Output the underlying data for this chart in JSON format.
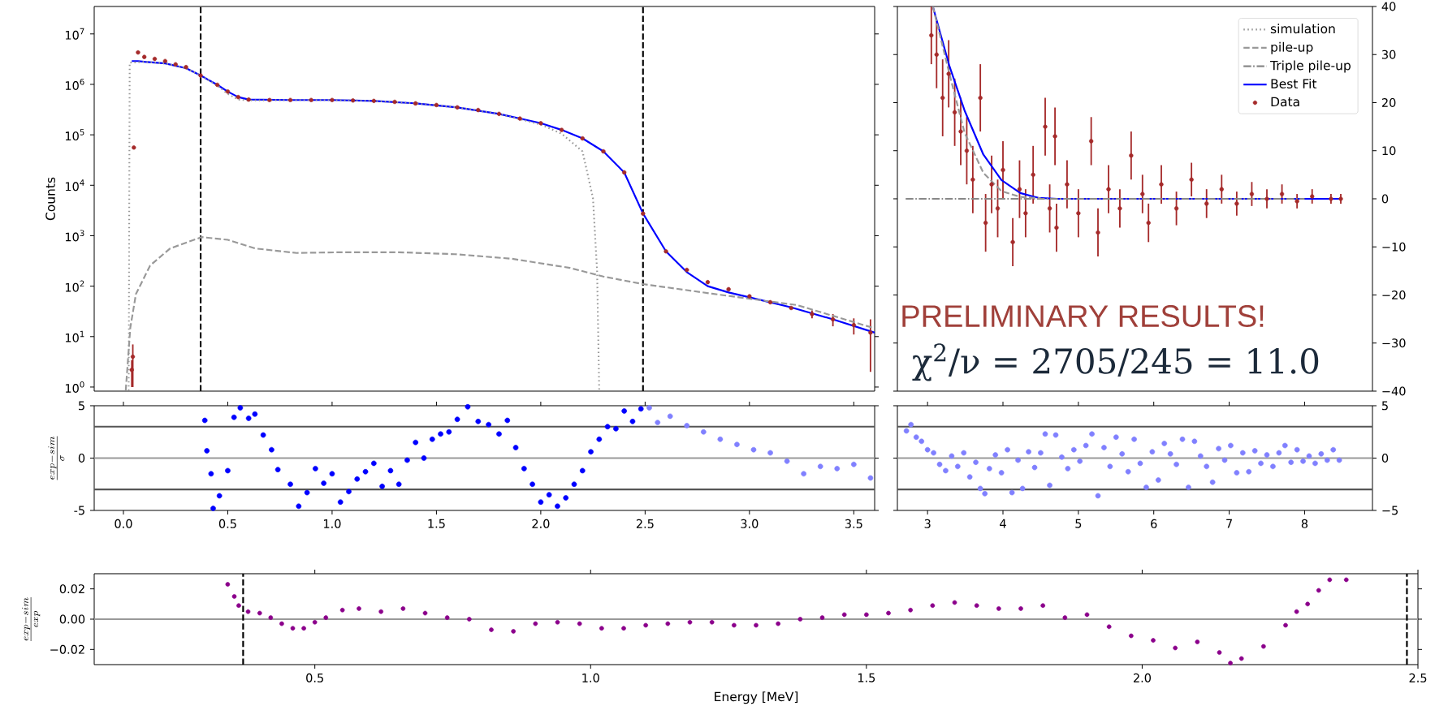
{
  "chart_data": [
    {
      "type": "line",
      "ylabel": "Counts",
      "xlim": [
        -0.14,
        3.6
      ],
      "ylim": [
        0.83,
        35000000
      ],
      "log": "y",
      "tick_labels": "y",
      "yticks": [
        {
          "value": 1,
          "label": "10$^{0}$"
        },
        {
          "value": 10,
          "label": "10$^{1}$"
        },
        {
          "value": 100,
          "label": "10$^{2}$"
        },
        {
          "value": 1000,
          "label": "10$^{3}$"
        },
        {
          "value": 10000,
          "label": "10$^{4}$"
        },
        {
          "value": 100000,
          "label": "10$^{5}$"
        },
        {
          "value": 1000000,
          "label": "10$^{6}$"
        },
        {
          "value": 10000000,
          "label": "10$^{7}$"
        }
      ],
      "ref_lines": [
        {
          "axis": "x",
          "value": 0.37,
          "color": "#000000",
          "line_style": "dashed"
        },
        {
          "axis": "x",
          "value": 2.49,
          "color": "#000000",
          "line_style": "dashed"
        }
      ],
      "series": [
        {
          "name": "simulation",
          "type": "line",
          "color": "#999999",
          "line_style": "dotted",
          "x": [
            0.025,
            0.03,
            0.1,
            0.2,
            0.3,
            0.37,
            0.45,
            0.5,
            0.55,
            0.6,
            0.8,
            1.0,
            1.2,
            1.4,
            1.6,
            1.8,
            2.0,
            2.1,
            2.2,
            2.25,
            2.27,
            2.28
          ],
          "values": [
            0.85,
            2700000,
            2800000,
            2600000,
            2100000,
            1500000,
            950000,
            650000,
            500000,
            480000,
            490000,
            490000,
            470000,
            420000,
            350000,
            260000,
            160000,
            105000,
            47000,
            5600,
            200,
            0.85
          ]
        },
        {
          "type": "line",
          "color": "#999999",
          "line_style": "dashed",
          "x": [
            0.011,
            0.033,
            0.06,
            0.128,
            0.224,
            0.375,
            0.5,
            0.63,
            0.83,
            1.04,
            1.32,
            1.59,
            1.86,
            2.14,
            2.3,
            2.49,
            2.82,
            3.23,
            3.59
          ],
          "values": [
            0.85,
            15,
            70,
            257,
            560,
            940,
            830,
            560,
            455,
            470,
            470,
            430,
            350,
            230,
            155,
            110,
            71,
            42,
            15
          ]
        },
        {
          "type": "line",
          "color": "#0000ff",
          "line_style": "solid",
          "x": [
            0.04,
            0.07,
            0.1,
            0.2,
            0.3,
            0.37,
            0.45,
            0.5,
            0.55,
            0.6,
            0.8,
            1.0,
            1.2,
            1.4,
            1.6,
            1.8,
            2.0,
            2.1,
            2.2,
            2.3,
            2.4,
            2.49,
            2.6,
            2.7,
            2.8,
            2.9,
            3.0,
            3.2,
            3.4,
            3.6
          ],
          "values": [
            2900000,
            2900000,
            2800000,
            2600000,
            2100000,
            1500000,
            980000,
            720000,
            560000,
            500000,
            490000,
            490000,
            470000,
            420000,
            350000,
            260000,
            170000,
            125000,
            85000,
            47000,
            18000,
            2750,
            490,
            190,
            100,
            75,
            60,
            38,
            22,
            12
          ]
        },
        {
          "type": "scatter",
          "color": "#a52a2a",
          "marker": "circle",
          "x": [
            0.04,
            0.045,
            0.05,
            0.07,
            0.1,
            0.15,
            0.2,
            0.25,
            0.3,
            0.37,
            0.45,
            0.5,
            0.55,
            0.6,
            0.7,
            0.8,
            0.9,
            1.0,
            1.1,
            1.2,
            1.3,
            1.4,
            1.5,
            1.6,
            1.7,
            1.8,
            1.9,
            2.0,
            2.1,
            2.2,
            2.3,
            2.4,
            2.49,
            2.6,
            2.7,
            2.8,
            2.9,
            3.0,
            3.1,
            3.2,
            3.3,
            3.4,
            3.5,
            3.58
          ],
          "values": [
            2.2,
            4,
            56000,
            4300000,
            3500000,
            3200000,
            2900000,
            2500000,
            2200000,
            1500000,
            980000,
            720000,
            560000,
            500000,
            490000,
            490000,
            490000,
            490000,
            480000,
            470000,
            450000,
            420000,
            390000,
            350000,
            310000,
            260000,
            210000,
            170000,
            125000,
            85000,
            47000,
            18000,
            2750,
            490,
            210,
            120,
            87,
            63,
            48,
            37,
            28,
            22,
            17,
            12
          ],
          "errors": [
            1.2,
            3,
            null,
            null,
            null,
            null,
            null,
            null,
            null,
            null,
            null,
            null,
            null,
            null,
            null,
            null,
            null,
            null,
            null,
            null,
            null,
            null,
            null,
            null,
            null,
            null,
            null,
            null,
            null,
            null,
            null,
            null,
            null,
            null,
            null,
            null,
            null,
            null,
            null,
            null,
            5,
            6,
            6,
            10
          ]
        }
      ]
    },
    {
      "type": "line",
      "xlim": [
        2.6,
        8.9
      ],
      "ylim": [
        -40,
        40
      ],
      "tick_labels": "y",
      "legend": "top right",
      "yticks": [
        {
          "value": -40,
          "label": "−40"
        },
        {
          "value": -30,
          "label": "−30"
        },
        {
          "value": -20,
          "label": "−20"
        },
        {
          "value": -10,
          "label": "−10"
        },
        0,
        10,
        20,
        30,
        40
      ],
      "annotations": [
        "PRELIMINARY RESULTS!",
        "χ$^{2}$/ν = 2705/245  = 11.0"
      ],
      "series": [
        {
          "name": "pile-up",
          "type": "line",
          "color": "#999999",
          "line_style": "dashed",
          "x": [
            3.07,
            3.29,
            3.49,
            3.74,
            3.98,
            4.23,
            4.5
          ],
          "values": [
            40,
            26,
            13.8,
            5.4,
            1.6,
            0.4,
            0.1
          ]
        },
        {
          "name": "Triple pile-up",
          "type": "line",
          "color": "#888888",
          "line_style": "dashdot",
          "x": [
            2.71,
            8.0
          ],
          "values": [
            0,
            0
          ]
        },
        {
          "name": "Best Fit",
          "type": "line",
          "color": "#0000ff",
          "line_style": "solid",
          "x": [
            3.07,
            3.29,
            3.49,
            3.74,
            3.98,
            4.23,
            4.47,
            4.72,
            8.48
          ],
          "values": [
            40,
            27.6,
            18.4,
            9.2,
            3.9,
            1.2,
            0.2,
            0,
            0
          ]
        },
        {
          "name": "Data",
          "type": "scatter",
          "color": "#a52a2a",
          "marker": "circle",
          "x": [
            3.05,
            3.12,
            3.2,
            3.28,
            3.36,
            3.44,
            3.52,
            3.6,
            3.7,
            3.77,
            3.85,
            3.93,
            4.0,
            4.13,
            4.22,
            4.3,
            4.4,
            4.56,
            4.62,
            4.69,
            4.71,
            4.85,
            5.0,
            5.17,
            5.26,
            5.4,
            5.55,
            5.7,
            5.85,
            5.93,
            6.1,
            6.3,
            6.5,
            6.7,
            6.9,
            7.1,
            7.3,
            7.5,
            7.7,
            7.9,
            8.1,
            8.35,
            8.48
          ],
          "values": [
            34,
            30,
            21,
            26,
            18,
            14,
            10,
            4,
            21,
            -5,
            3,
            -2,
            6,
            -9,
            2,
            -3,
            5,
            15,
            -2,
            13,
            -6,
            3,
            -3,
            12,
            -7,
            2,
            -2,
            9,
            1,
            -5,
            3,
            -2,
            4,
            -1,
            2,
            -1,
            1,
            0,
            1,
            -0.5,
            0.5,
            0,
            0
          ],
          "errors": [
            6,
            7,
            8,
            7,
            7,
            7,
            7,
            7,
            7,
            6,
            6,
            6,
            6,
            5,
            6,
            5,
            6,
            6,
            5,
            6,
            5,
            5,
            5,
            5,
            5,
            5,
            4,
            5,
            4,
            4,
            4,
            3.5,
            3.5,
            3,
            3,
            2.5,
            2.5,
            2,
            2,
            1.5,
            1.5,
            1,
            1
          ]
        }
      ]
    },
    {
      "type": "scatter",
      "ylabel": "\\frac{exp-sim}{\\sigma}",
      "xlim": [
        -0.14,
        3.6
      ],
      "ylim": [
        -5,
        5
      ],
      "yticks": [
        -5,
        0,
        5
      ],
      "xticks": [
        {
          "value": 0,
          "label": "0.0"
        },
        {
          "value": 0.5,
          "label": "0.5"
        },
        {
          "value": 1,
          "label": "1.0"
        },
        {
          "value": 1.5,
          "label": "1.5"
        },
        {
          "value": 2,
          "label": "2.0"
        },
        {
          "value": 2.5,
          "label": "2.5"
        },
        {
          "value": 3,
          "label": "3.0"
        },
        {
          "value": 3.5,
          "label": "3.5"
        }
      ],
      "ref_lines": [
        {
          "axis": "y",
          "value": 3,
          "color": "#555555",
          "line_style": "solid"
        },
        {
          "axis": "y",
          "value": 0,
          "color": "#999999",
          "line_style": "solid"
        },
        {
          "axis": "y",
          "value": -3,
          "color": "#555555",
          "line_style": "solid"
        }
      ],
      "series": [
        {
          "color": "#0000ff",
          "marker": "circle",
          "x": [
            0.39,
            0.4,
            0.42,
            0.43,
            0.46,
            0.5,
            0.53,
            0.56,
            0.6,
            0.63,
            0.67,
            0.71,
            0.74,
            0.8,
            0.84,
            0.88,
            0.92,
            0.96,
            1.0,
            1.04,
            1.08,
            1.12,
            1.16,
            1.2,
            1.24,
            1.28,
            1.32,
            1.36,
            1.4,
            1.44,
            1.48,
            1.52,
            1.56,
            1.6,
            1.65,
            1.7,
            1.75,
            1.8,
            1.84,
            1.88,
            1.92,
            1.96,
            2.0,
            2.04,
            2.08,
            2.12,
            2.16,
            2.2,
            2.24,
            2.28,
            2.32,
            2.36,
            2.4,
            2.44,
            2.48
          ],
          "values": [
            3.6,
            0.7,
            -1.5,
            -4.8,
            -3.6,
            -1.2,
            3.9,
            4.8,
            3.8,
            4.2,
            2.2,
            0.8,
            -1.1,
            -2.5,
            -4.6,
            -3.3,
            -1.0,
            -2.4,
            -1.5,
            -4.2,
            -3.2,
            -2.0,
            -1.3,
            -0.5,
            -2.7,
            -1.2,
            -2.5,
            -0.2,
            1.5,
            0.0,
            1.8,
            2.3,
            2.5,
            3.7,
            4.9,
            3.5,
            3.2,
            2.3,
            3.6,
            1.0,
            -1.0,
            -2.5,
            -4.2,
            -3.5,
            -4.6,
            -3.8,
            -2.5,
            -1.2,
            0.6,
            1.8,
            3.0,
            2.8,
            4.5,
            3.5,
            4.7
          ]
        },
        {
          "color": "#8080ff",
          "marker": "circle",
          "x": [
            2.52,
            2.56,
            2.62,
            2.7,
            2.78,
            2.86,
            2.94,
            3.02,
            3.1,
            3.18,
            3.26,
            3.34,
            3.42,
            3.5,
            3.58
          ],
          "values": [
            4.8,
            3.4,
            4.0,
            3.1,
            2.5,
            1.8,
            1.3,
            0.8,
            0.5,
            -0.3,
            -1.5,
            -0.8,
            -1.0,
            -0.6,
            -1.9
          ]
        }
      ]
    },
    {
      "type": "scatter",
      "xlim": [
        2.6,
        8.9
      ],
      "ylim": [
        -5,
        5
      ],
      "yticks": [
        {
          "value": -5,
          "label": "−5"
        },
        0,
        5
      ],
      "xticks": [
        3,
        4,
        5,
        6,
        7,
        8
      ],
      "ref_lines": [
        {
          "axis": "y",
          "value": 3,
          "color": "#555555",
          "line_style": "solid"
        },
        {
          "axis": "y",
          "value": 0,
          "color": "#999999",
          "line_style": "solid"
        },
        {
          "axis": "y",
          "value": -3,
          "color": "#555555",
          "line_style": "solid"
        }
      ],
      "series": [
        {
          "color": "#8080ff",
          "marker": "circle",
          "x": [
            2.72,
            2.78,
            2.85,
            2.92,
            3.0,
            3.08,
            3.16,
            3.24,
            3.32,
            3.4,
            3.48,
            3.56,
            3.64,
            3.7,
            3.76,
            3.82,
            3.9,
            3.98,
            4.06,
            4.12,
            4.2,
            4.26,
            4.34,
            4.42,
            4.5,
            4.56,
            4.62,
            4.7,
            4.78,
            4.86,
            4.94,
            5.02,
            5.1,
            5.18,
            5.26,
            5.34,
            5.42,
            5.5,
            5.58,
            5.66,
            5.74,
            5.82,
            5.9,
            5.98,
            6.06,
            6.14,
            6.22,
            6.3,
            6.38,
            6.46,
            6.54,
            6.62,
            6.7,
            6.78,
            6.86,
            6.94,
            7.02,
            7.1,
            7.18,
            7.26,
            7.34,
            7.42,
            7.5,
            7.58,
            7.66,
            7.74,
            7.82,
            7.9,
            7.98,
            8.06,
            8.14,
            8.22,
            8.3,
            8.38,
            8.46
          ],
          "values": [
            2.6,
            3.2,
            2.0,
            1.6,
            0.8,
            0.5,
            -0.6,
            -1.2,
            0.2,
            -0.8,
            0.5,
            -1.8,
            -0.4,
            -2.9,
            -3.4,
            -1.0,
            0.3,
            -1.4,
            0.8,
            -3.3,
            -0.2,
            -2.9,
            0.6,
            -0.9,
            0.5,
            2.3,
            -2.6,
            2.2,
            0.1,
            -1.0,
            0.8,
            -0.3,
            1.2,
            2.3,
            -3.6,
            1.0,
            -0.8,
            2.0,
            0.4,
            -1.3,
            1.8,
            -0.5,
            -2.8,
            0.6,
            -2.1,
            1.4,
            0.4,
            -0.6,
            1.8,
            -2.8,
            1.6,
            0.2,
            -0.8,
            -2.3,
            0.9,
            -0.2,
            1.2,
            -1.4,
            0.5,
            -1.3,
            0.7,
            -0.5,
            0.3,
            -0.8,
            0.5,
            1.2,
            -0.4,
            0.8,
            -0.3,
            0.2,
            -0.5,
            0.4,
            -0.2,
            0.8,
            -0.2
          ]
        }
      ]
    },
    {
      "type": "scatter",
      "xlabel": "Energy [MeV]",
      "ylabel": "\\frac{exp-sim}{exp}",
      "xlim": [
        0.1,
        2.5
      ],
      "ylim": [
        -0.03,
        0.03
      ],
      "xticks": [
        {
          "value": 0.5,
          "label": "0.5"
        },
        {
          "value": 1,
          "label": "1.0"
        },
        {
          "value": 1.5,
          "label": "1.5"
        },
        {
          "value": 2,
          "label": "2.0"
        },
        {
          "value": 2.5,
          "label": "2.5"
        }
      ],
      "yticks": [
        {
          "value": -0.02,
          "label": "−0.02"
        },
        {
          "value": 0,
          "label": "0.00"
        },
        {
          "value": 0.02,
          "label": "0.02"
        }
      ],
      "ref_lines": [
        {
          "axis": "y",
          "value": 0,
          "color": "#999999",
          "line_style": "solid"
        },
        {
          "axis": "x",
          "value": 0.37,
          "color": "#000000",
          "line_style": "dashed"
        },
        {
          "axis": "x",
          "value": 2.48,
          "color": "#000000",
          "line_style": "dashed"
        }
      ],
      "series": [
        {
          "color": "#8b008b",
          "marker": "circle",
          "x": [
            0.342,
            0.354,
            0.362,
            0.379,
            0.4,
            0.42,
            0.44,
            0.46,
            0.48,
            0.5,
            0.52,
            0.55,
            0.58,
            0.62,
            0.66,
            0.7,
            0.74,
            0.78,
            0.82,
            0.86,
            0.9,
            0.94,
            0.98,
            1.02,
            1.06,
            1.1,
            1.14,
            1.18,
            1.22,
            1.26,
            1.3,
            1.34,
            1.38,
            1.42,
            1.46,
            1.5,
            1.54,
            1.58,
            1.62,
            1.66,
            1.7,
            1.74,
            1.78,
            1.82,
            1.86,
            1.9,
            1.94,
            1.98,
            2.02,
            2.06,
            2.1,
            2.14,
            2.16,
            2.18,
            2.22,
            2.26,
            2.28,
            2.3,
            2.32,
            2.34,
            2.37
          ],
          "values": [
            0.023,
            0.015,
            0.009,
            0.005,
            0.004,
            0.001,
            -0.003,
            -0.006,
            -0.006,
            -0.002,
            0.001,
            0.006,
            0.007,
            0.005,
            0.007,
            0.004,
            0.001,
            0.0,
            -0.007,
            -0.008,
            -0.003,
            -0.002,
            -0.003,
            -0.006,
            -0.006,
            -0.004,
            -0.003,
            -0.002,
            -0.002,
            -0.004,
            -0.004,
            -0.003,
            0.0,
            0.001,
            0.003,
            0.003,
            0.004,
            0.006,
            0.009,
            0.011,
            0.009,
            0.007,
            0.007,
            0.009,
            0.001,
            0.003,
            -0.005,
            -0.011,
            -0.014,
            -0.019,
            -0.015,
            -0.022,
            -0.029,
            -0.026,
            -0.018,
            -0.004,
            0.005,
            0.01,
            0.019,
            0.026,
            0.026
          ]
        }
      ]
    }
  ]
}
